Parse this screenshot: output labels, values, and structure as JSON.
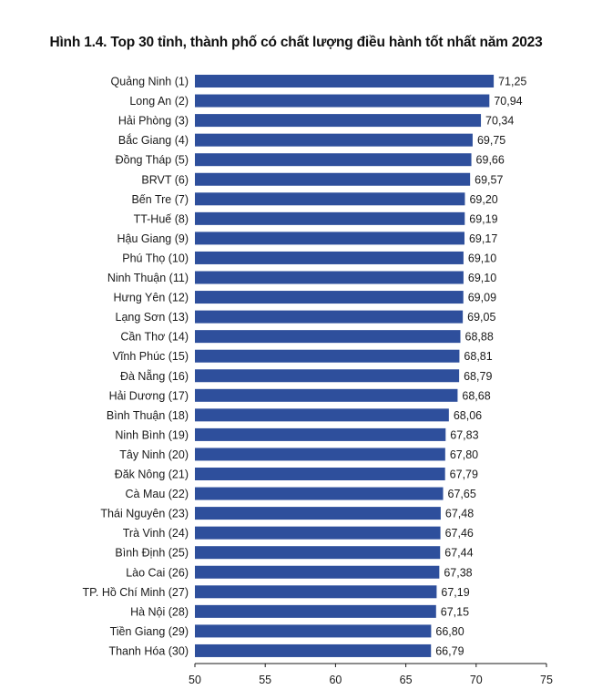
{
  "chart_data": {
    "type": "bar",
    "orientation": "horizontal",
    "title": "Hình 1.4. Top 30 tỉnh, thành phố có chất lượng điều hành tốt nhất năm 2023",
    "categories": [
      "Quảng Ninh (1)",
      "Long An (2)",
      "Hải Phòng (3)",
      "Bắc Giang (4)",
      "Đồng Tháp (5)",
      "BRVT (6)",
      "Bến Tre (7)",
      "TT-Huế (8)",
      "Hậu Giang (9)",
      "Phú Thọ (10)",
      "Ninh Thuận (11)",
      "Hưng Yên (12)",
      "Lạng Sơn (13)",
      "Cần Thơ (14)",
      "Vĩnh Phúc (15)",
      "Đà Nẵng (16)",
      "Hải Dương (17)",
      "Bình Thuận (18)",
      "Ninh Bình (19)",
      "Tây Ninh (20)",
      "Đăk Nông (21)",
      "Cà Mau (22)",
      "Thái Nguyên (23)",
      "Trà Vinh (24)",
      "Bình Định (25)",
      "Lào Cai (26)",
      "TP. Hồ Chí Minh (27)",
      "Hà Nội (28)",
      "Tiền Giang (29)",
      "Thanh Hóa (30)"
    ],
    "values": [
      71.25,
      70.94,
      70.34,
      69.75,
      69.66,
      69.57,
      69.2,
      69.19,
      69.17,
      69.1,
      69.1,
      69.09,
      69.05,
      68.88,
      68.81,
      68.79,
      68.68,
      68.06,
      67.83,
      67.8,
      67.79,
      67.65,
      67.48,
      67.46,
      67.44,
      67.38,
      67.19,
      67.15,
      66.8,
      66.79
    ],
    "value_labels": [
      "71,25",
      "70,94",
      "70,34",
      "69,75",
      "69,66",
      "69,57",
      "69,20",
      "69,19",
      "69,17",
      "69,10",
      "69,10",
      "69,09",
      "69,05",
      "68,88",
      "68,81",
      "68,79",
      "68,68",
      "68,06",
      "67,83",
      "67,80",
      "67,79",
      "67,65",
      "67,48",
      "67,46",
      "67,44",
      "67,38",
      "67,19",
      "67,15",
      "66,80",
      "66,79"
    ],
    "xlim": [
      50,
      75
    ],
    "xticks": [
      50,
      55,
      60,
      65,
      70,
      75
    ],
    "grid": false,
    "bar_color": "#2e4f9c"
  }
}
